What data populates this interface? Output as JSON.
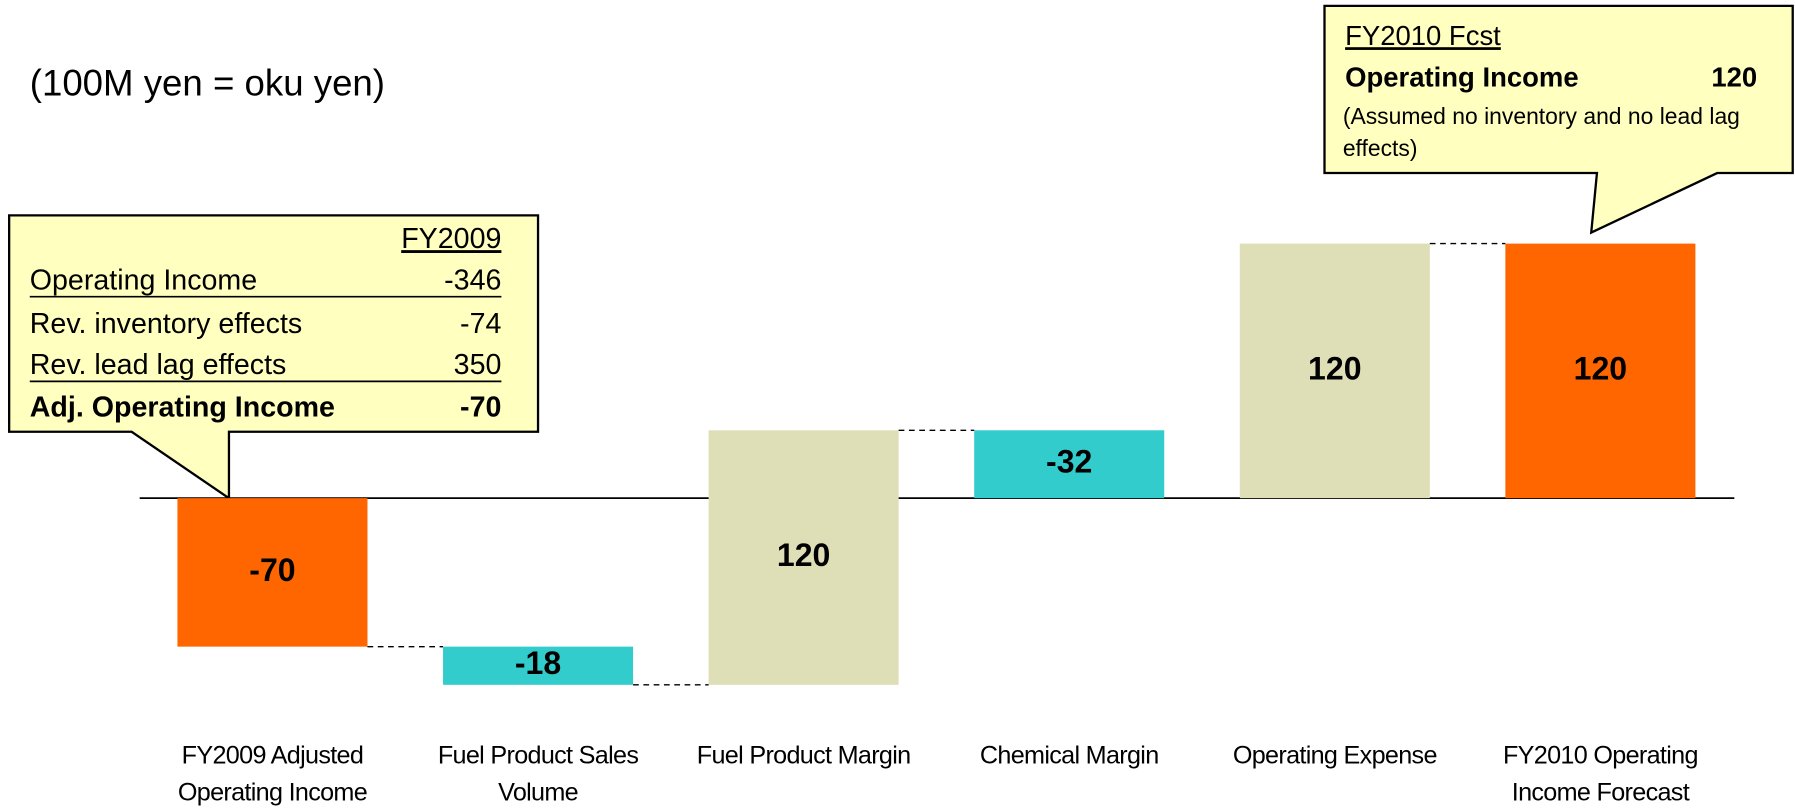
{
  "chart_data": {
    "type": "waterfall",
    "subtitle": "(100M yen = oku yen)",
    "categories": [
      "FY2009 Adjusted Operating Income",
      "Fuel Product Sales Volume",
      "Fuel Product Margin",
      "Chemical Margin",
      "Operating Expense",
      "FY2010 Operating Income Forecast"
    ],
    "values": [
      -70,
      -18,
      120,
      -32,
      120,
      120
    ],
    "totals": [
      true,
      false,
      false,
      false,
      false,
      true
    ],
    "colors": [
      "#ff6600",
      "#33cccc",
      "#dfdfb7",
      "#33cccc",
      "#dfdfb7",
      "#ff6600"
    ],
    "callouts": [
      {
        "header": "FY2009",
        "rows": [
          {
            "label": "Operating Income",
            "value": -346
          },
          {
            "label": "Rev. inventory effects",
            "value": -74
          },
          {
            "label": "Rev. lead lag effects",
            "value": 350
          },
          {
            "label": "Adj. Operating Income",
            "value": -70
          }
        ]
      },
      {
        "title": "FY2010 Fcst",
        "label": "Operating Income",
        "value": 120,
        "note": "(Assumed no inventory and no lead lag effects)"
      }
    ]
  }
}
